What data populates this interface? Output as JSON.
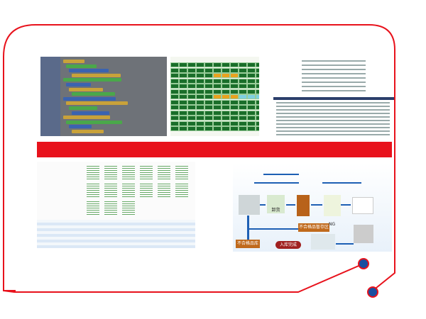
{
  "colors": {
    "frame": "#e8121c",
    "node": "#1a4fa0",
    "banner": "#e8121c"
  },
  "flow": {
    "ng_label": "NG",
    "unload": "卸货",
    "reject_zone": "不合格品暂存区",
    "reject_store": "不合格品库",
    "done": "入库完成"
  }
}
